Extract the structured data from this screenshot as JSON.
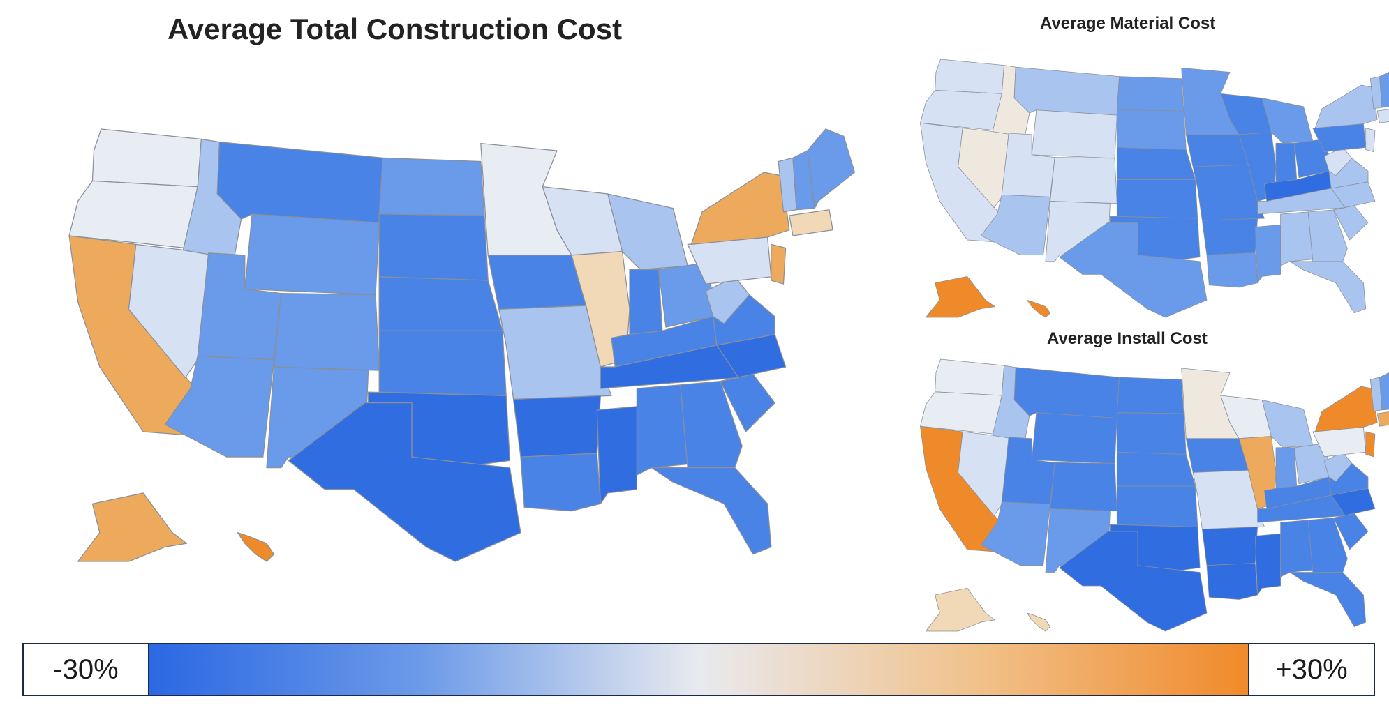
{
  "main_title": "Average Total Construction Cost",
  "material_title": "Average Material Cost",
  "install_title": "Average Install Cost",
  "legend": {
    "min_label": "-30%",
    "max_label": "+30%",
    "colors": [
      "#2b68e3",
      "#6d9be8",
      "#e8eaef",
      "#f1c28c",
      "#f08a2a"
    ]
  },
  "palette": {
    "deep_blue": "#2f6de1",
    "blue": "#4a83e6",
    "mid_blue": "#6a9bea",
    "light_blue": "#a9c4ef",
    "pale_blue": "#d6e1f3",
    "near_white": "#e8ecf3",
    "tan": "#eee8df",
    "pale_orange": "#f1d8b6",
    "light_orange": "#eeaa5c",
    "orange": "#ef8a2b"
  },
  "maps": {
    "total": {
      "WA": "near_white",
      "OR": "near_white",
      "CA": "light_orange",
      "NV": "pale_blue",
      "ID": "light_blue",
      "MT": "blue",
      "WY": "mid_blue",
      "UT": "mid_blue",
      "AZ": "mid_blue",
      "CO": "mid_blue",
      "NM": "mid_blue",
      "ND": "mid_blue",
      "SD": "blue",
      "NE": "blue",
      "KS": "blue",
      "OK": "deep_blue",
      "TX": "deep_blue",
      "MN": "near_white",
      "IA": "blue",
      "MO": "light_blue",
      "AR": "deep_blue",
      "LA": "blue",
      "WI": "pale_blue",
      "IL": "pale_orange",
      "MS": "deep_blue",
      "MI": "light_blue",
      "IN": "blue",
      "OH": "mid_blue",
      "KY": "blue",
      "TN": "deep_blue",
      "AL": "blue",
      "GA": "blue",
      "FL": "blue",
      "SC": "blue",
      "NC": "deep_blue",
      "VA": "blue",
      "WV": "light_blue",
      "PA": "pale_blue",
      "NY": "light_orange",
      "NJ": "light_orange",
      "NE_EAST": "pale_orange",
      "ME": "mid_blue",
      "NH": "mid_blue",
      "VT": "light_blue",
      "AK": "light_orange",
      "HI": "orange"
    },
    "material": {
      "WA": "pale_blue",
      "OR": "pale_blue",
      "CA": "pale_blue",
      "NV": "tan",
      "ID": "tan",
      "MT": "light_blue",
      "WY": "pale_blue",
      "UT": "pale_blue",
      "AZ": "light_blue",
      "CO": "pale_blue",
      "NM": "pale_blue",
      "ND": "mid_blue",
      "SD": "mid_blue",
      "NE": "blue",
      "KS": "blue",
      "OK": "blue",
      "TX": "mid_blue",
      "MN": "mid_blue",
      "IA": "blue",
      "MO": "blue",
      "AR": "blue",
      "LA": "mid_blue",
      "WI": "blue",
      "IL": "blue",
      "MS": "mid_blue",
      "MI": "mid_blue",
      "IN": "blue",
      "OH": "blue",
      "KY": "deep_blue",
      "TN": "light_blue",
      "AL": "light_blue",
      "GA": "light_blue",
      "FL": "light_blue",
      "SC": "light_blue",
      "NC": "light_blue",
      "VA": "light_blue",
      "WV": "pale_blue",
      "PA": "blue",
      "NY": "light_blue",
      "NJ": "pale_blue",
      "NE_EAST": "pale_blue",
      "ME": "mid_blue",
      "NH": "mid_blue",
      "VT": "light_blue",
      "AK": "orange",
      "HI": "orange"
    },
    "install": {
      "WA": "near_white",
      "OR": "near_white",
      "CA": "orange",
      "NV": "pale_blue",
      "ID": "light_blue",
      "MT": "blue",
      "WY": "blue",
      "UT": "blue",
      "AZ": "mid_blue",
      "CO": "blue",
      "NM": "mid_blue",
      "ND": "blue",
      "SD": "blue",
      "NE": "blue",
      "KS": "blue",
      "OK": "deep_blue",
      "TX": "deep_blue",
      "MN": "tan",
      "IA": "blue",
      "MO": "pale_blue",
      "AR": "deep_blue",
      "LA": "deep_blue",
      "WI": "near_white",
      "IL": "light_orange",
      "MS": "deep_blue",
      "MI": "light_blue",
      "IN": "mid_blue",
      "OH": "light_blue",
      "KY": "blue",
      "TN": "blue",
      "AL": "blue",
      "GA": "blue",
      "FL": "blue",
      "SC": "blue",
      "NC": "deep_blue",
      "VA": "blue",
      "WV": "light_blue",
      "PA": "near_white",
      "NY": "orange",
      "NJ": "orange",
      "NE_EAST": "light_orange",
      "ME": "mid_blue",
      "NH": "mid_blue",
      "VT": "light_blue",
      "AK": "pale_orange",
      "HI": "pale_orange"
    }
  }
}
